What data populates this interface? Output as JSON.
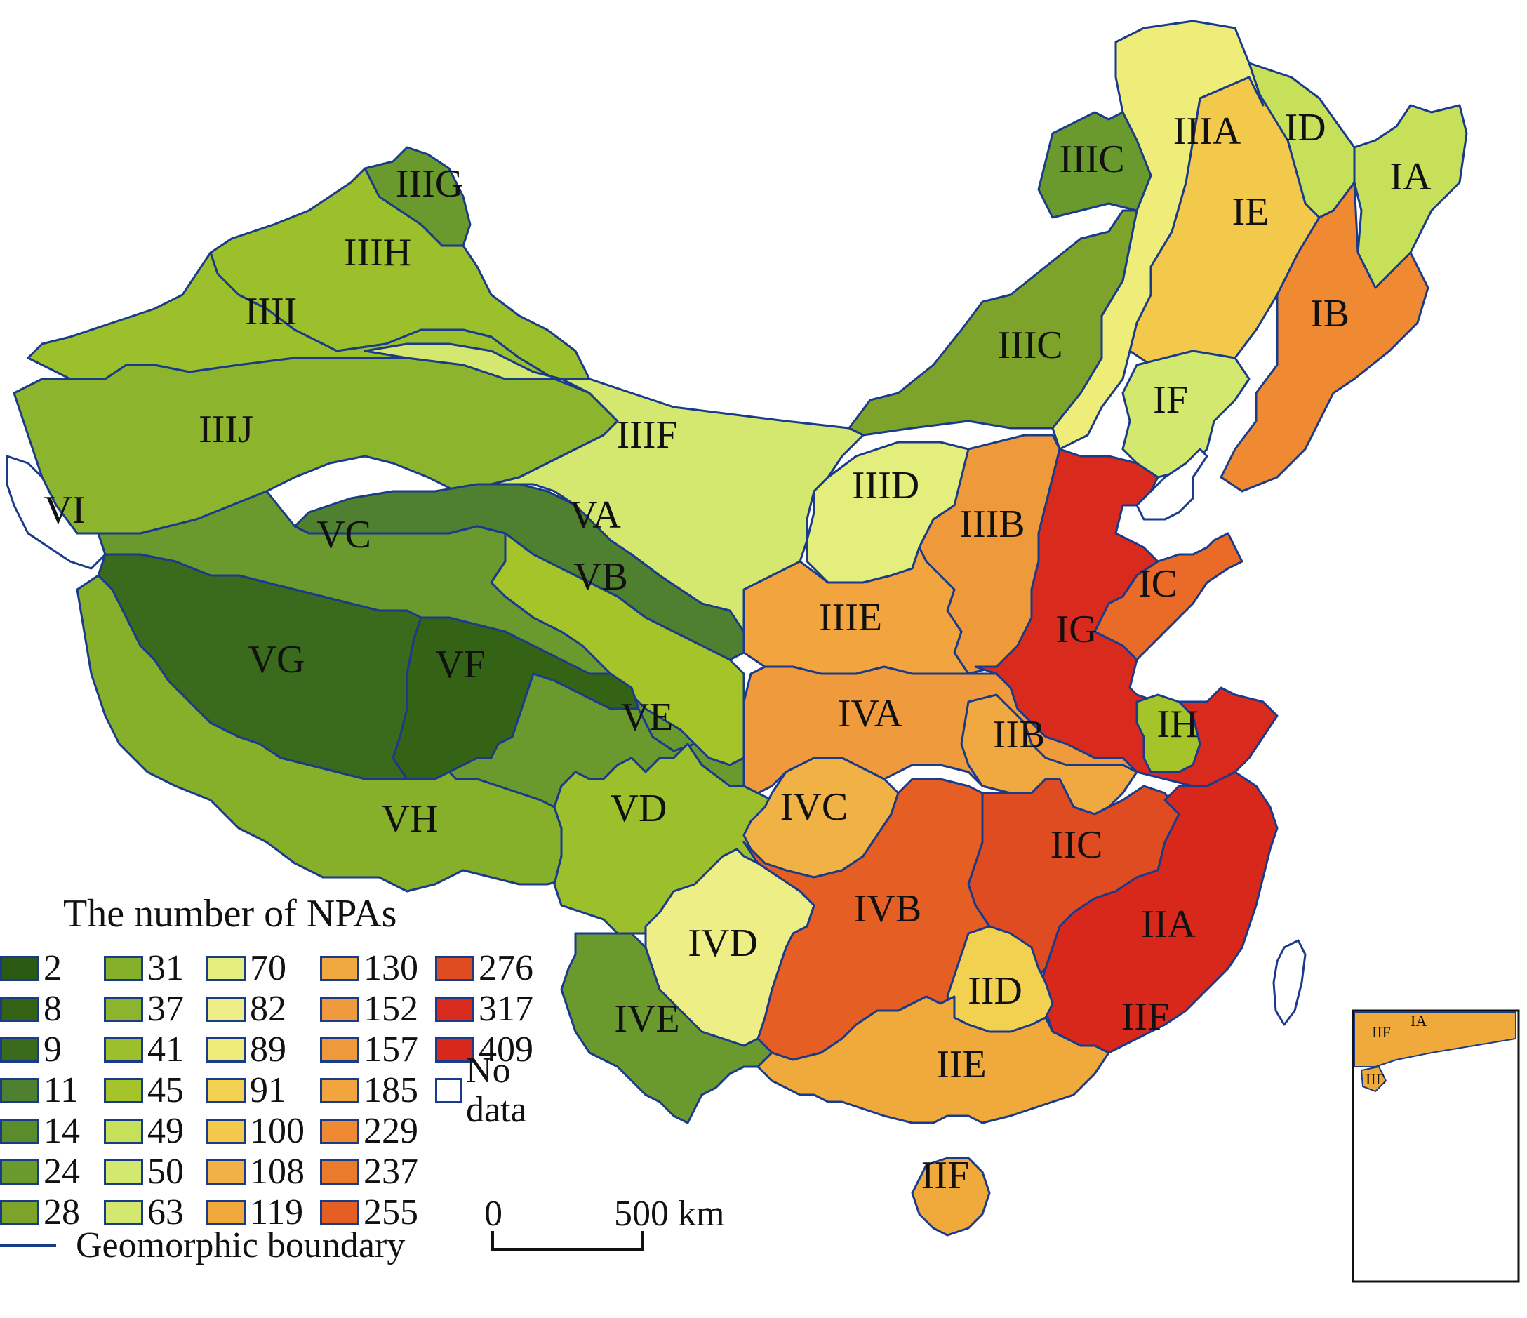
{
  "regions": [
    {
      "id": "IA",
      "label": "IA",
      "color": "#c7e05a"
    },
    {
      "id": "ID",
      "label": "ID",
      "color": "#c7e05a"
    },
    {
      "id": "IE",
      "label": "IE",
      "color": "#f2c94a"
    },
    {
      "id": "IB",
      "label": "IB",
      "color": "#ef8a32"
    },
    {
      "id": "IIIA",
      "label": "IIIA",
      "color": "#eeed7a"
    },
    {
      "id": "IIIC_NE",
      "label": "IIIC",
      "color": "#6a9a2e"
    },
    {
      "id": "IIIC",
      "label": "IIIC",
      "color": "#7ea32a"
    },
    {
      "id": "IF",
      "label": "IF",
      "color": "#d2e86e"
    },
    {
      "id": "IIIG",
      "label": "IIIG",
      "color": "#6a9a2e"
    },
    {
      "id": "IIIH",
      "label": "IIIH",
      "color": "#9cbf2c"
    },
    {
      "id": "IIII",
      "label": "IIII",
      "color": "#9cbf2c"
    },
    {
      "id": "IIIJ",
      "label": "IIIJ",
      "color": "#8cb52d"
    },
    {
      "id": "IIIF",
      "label": "IIIF",
      "color": "#d4e870"
    },
    {
      "id": "IIID",
      "label": "IIID",
      "color": "#e4ee7c"
    },
    {
      "id": "IIIB",
      "label": "IIIB",
      "color": "#ee9a3a"
    },
    {
      "id": "IIIE",
      "label": "IIIE",
      "color": "#f2a43e"
    },
    {
      "id": "VI",
      "label": "VI",
      "color": "#ffffff"
    },
    {
      "id": "VA",
      "label": "VA",
      "color": "#4f8030"
    },
    {
      "id": "VC",
      "label": "VC",
      "color": "#6a9a2e"
    },
    {
      "id": "VB",
      "label": "VB",
      "color": "#a4c42a"
    },
    {
      "id": "VG",
      "label": "VG",
      "color": "#3a6a1c"
    },
    {
      "id": "VF",
      "label": "VF",
      "color": "#356316"
    },
    {
      "id": "VE",
      "label": "VE",
      "color": "#6a9a2e"
    },
    {
      "id": "VH",
      "label": "VH",
      "color": "#86b02a"
    },
    {
      "id": "VD",
      "label": "VD",
      "color": "#9cbf2c"
    },
    {
      "id": "IG",
      "label": "IG",
      "color": "#d92a1e"
    },
    {
      "id": "IC",
      "label": "IC",
      "color": "#ea6a28"
    },
    {
      "id": "IH",
      "label": "IH",
      "color": "#a4c42a"
    },
    {
      "id": "IVA",
      "label": "IVA",
      "color": "#ef9a3c"
    },
    {
      "id": "IIB",
      "label": "IIB",
      "color": "#f0a840"
    },
    {
      "id": "IVC",
      "label": "IVC",
      "color": "#f0b245"
    },
    {
      "id": "IIC",
      "label": "IIC",
      "color": "#e04c22"
    },
    {
      "id": "IVB",
      "label": "IVB",
      "color": "#e55e24"
    },
    {
      "id": "IIA",
      "label": "IIA",
      "color": "#d8281c"
    },
    {
      "id": "IVD",
      "label": "IVD",
      "color": "#eeee86"
    },
    {
      "id": "IID",
      "label": "IID",
      "color": "#f2d050"
    },
    {
      "id": "IVE",
      "label": "IVE",
      "color": "#6a9a2e"
    },
    {
      "id": "IIE",
      "label": "IIE",
      "color": "#f0aa3c"
    },
    {
      "id": "IIF_TW",
      "label": "IIF",
      "color": "#f0aa3c"
    },
    {
      "id": "IIF",
      "label": "IIF",
      "color": "#f0aa3c"
    }
  ],
  "legend": {
    "title": "The number of NPAs",
    "items": [
      {
        "value": "2",
        "color": "#2a5a14"
      },
      {
        "value": "8",
        "color": "#356316"
      },
      {
        "value": "9",
        "color": "#3a6a1c"
      },
      {
        "value": "11",
        "color": "#4f8030"
      },
      {
        "value": "14",
        "color": "#5a8c2c"
      },
      {
        "value": "24",
        "color": "#6a9a2e"
      },
      {
        "value": "28",
        "color": "#7ea32a"
      },
      {
        "value": "31",
        "color": "#86b02a"
      },
      {
        "value": "37",
        "color": "#8cb52d"
      },
      {
        "value": "41",
        "color": "#9cbf2c"
      },
      {
        "value": "45",
        "color": "#a4c42a"
      },
      {
        "value": "49",
        "color": "#c7e05a"
      },
      {
        "value": "50",
        "color": "#d2e86e"
      },
      {
        "value": "63",
        "color": "#d4e870"
      },
      {
        "value": "70",
        "color": "#e4ee7c"
      },
      {
        "value": "82",
        "color": "#eeee86"
      },
      {
        "value": "89",
        "color": "#eeed7a"
      },
      {
        "value": "91",
        "color": "#f2d050"
      },
      {
        "value": "100",
        "color": "#f2c94a"
      },
      {
        "value": "108",
        "color": "#f0b245"
      },
      {
        "value": "119",
        "color": "#f0aa3c"
      },
      {
        "value": "130",
        "color": "#f0a840"
      },
      {
        "value": "152",
        "color": "#ef9a3c"
      },
      {
        "value": "157",
        "color": "#ee9a3a"
      },
      {
        "value": "185",
        "color": "#f2a43e"
      },
      {
        "value": "229",
        "color": "#ef8a32"
      },
      {
        "value": "237",
        "color": "#ea7a2c"
      },
      {
        "value": "255",
        "color": "#e55e24"
      },
      {
        "value": "276",
        "color": "#e04c22"
      },
      {
        "value": "317",
        "color": "#d92a1e"
      },
      {
        "value": "409",
        "color": "#d8281c"
      },
      {
        "value": "No data",
        "color": "#ffffff"
      }
    ],
    "boundary_label": "Geomorphic boundary"
  },
  "scale": {
    "start": "0",
    "end": "500 km"
  },
  "colors": {
    "boundary": "#1a3a8a",
    "sea": "#ffffff"
  }
}
